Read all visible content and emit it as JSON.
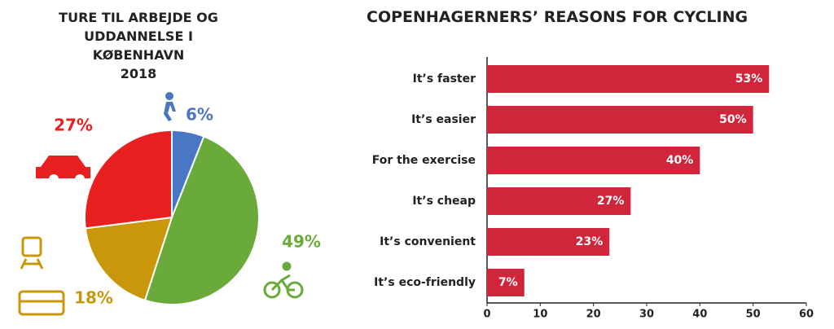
{
  "chart_data": [
    {
      "type": "pie",
      "title": "TURE TIL ARBEJDE OG\nUDDANNELSE I KØBENHAVN\n2018",
      "categories": [
        null,
        null,
        null,
        null
      ],
      "values": [
        6,
        49,
        18,
        27
      ],
      "value_labels": [
        "6%",
        "49%",
        "18%",
        "27%"
      ],
      "colors": [
        "#4a77c4",
        "#6aaa3a",
        "#c9980a",
        "#e8201f"
      ]
    },
    {
      "type": "hbar",
      "title": "COPENHAGERNERS’ REASONS FOR CYCLING",
      "categories": [
        "It’s faster",
        "It’s easier",
        "For the exercise",
        "It’s cheap",
        "It’s convenient",
        "It’s eco-friendly"
      ],
      "values": [
        53,
        50,
        40,
        27,
        23,
        7
      ],
      "value_labels": [
        "53%",
        "50%",
        "40%",
        "27%",
        "23%",
        "7%"
      ],
      "color": "#d0253a",
      "xlim": [
        0,
        60
      ],
      "xticks": [
        0,
        10,
        20,
        30,
        40,
        50,
        60
      ]
    }
  ]
}
